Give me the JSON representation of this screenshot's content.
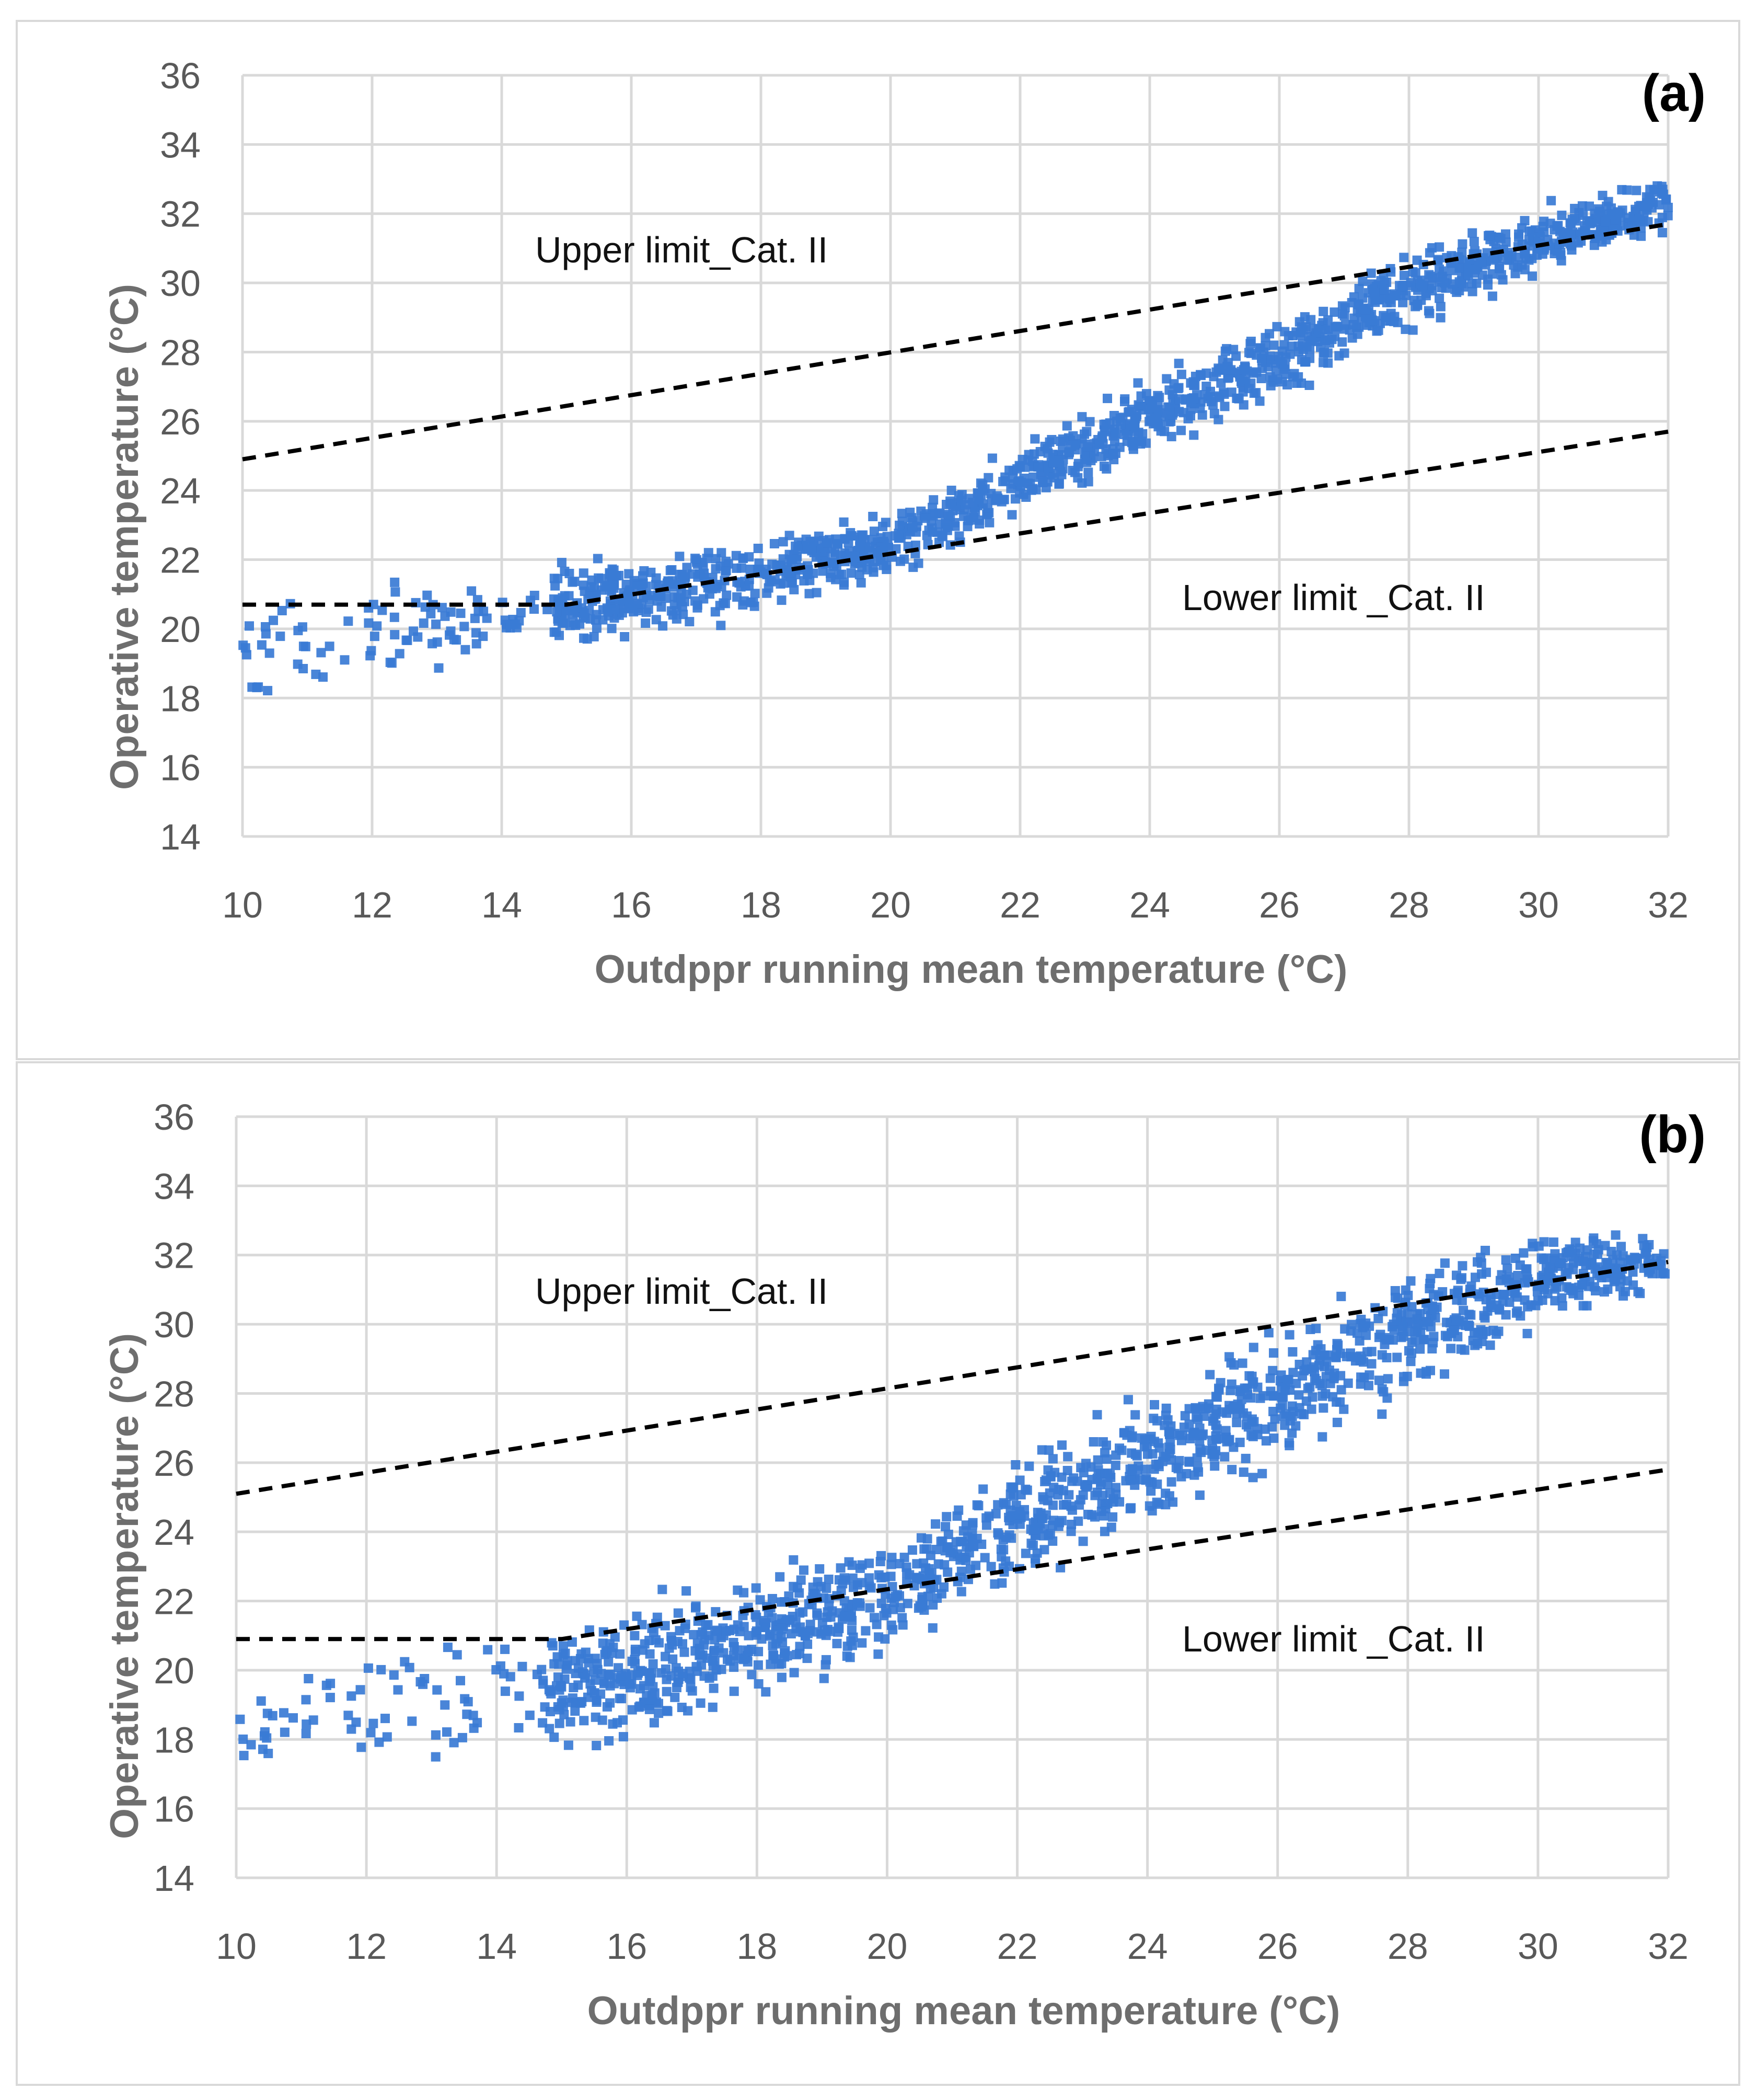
{
  "colors": {
    "marker": "#3a7bd5",
    "limit_line": "#000000",
    "grid": "#d9d9d9",
    "axis_text": "#595959"
  },
  "chart_data": [
    {
      "type": "scatter",
      "panel_label": "(a)",
      "xlabel": "Outdppr running mean temperature (°C)",
      "ylabel": "Operative temperature (°C)",
      "xlim": [
        10,
        32
      ],
      "ylim": [
        14,
        36
      ],
      "xticks": [
        "10",
        "12",
        "14",
        "16",
        "18",
        "20",
        "22",
        "24",
        "26",
        "28",
        "30",
        "32"
      ],
      "yticks": [
        "14",
        "16",
        "18",
        "20",
        "22",
        "24",
        "26",
        "28",
        "30",
        "32",
        "34",
        "36"
      ],
      "grid": true,
      "marker": "square",
      "upper_limit": {
        "label": "Upper limit_Cat. II",
        "points": [
          [
            10,
            24.9
          ],
          [
            32,
            31.7
          ]
        ]
      },
      "lower_limit": {
        "label": "Lower limit _Cat. II",
        "points": [
          [
            10,
            20.7
          ],
          [
            15,
            20.7
          ],
          [
            32,
            25.7
          ]
        ]
      },
      "series": [
        {
          "name": "Operative temperature",
          "trend": [
            [
              10,
              19.2
            ],
            [
              12,
              19.9
            ],
            [
              14,
              20.5
            ],
            [
              16,
              20.9
            ],
            [
              18,
              21.6
            ],
            [
              20,
              22.4
            ],
            [
              22,
              24.3
            ],
            [
              24,
              26.1
            ],
            [
              26,
              27.8
            ],
            [
              28,
              29.8
            ],
            [
              30,
              31.2
            ],
            [
              32,
              32.3
            ]
          ],
          "spread": [
            [
              10,
              1.2
            ],
            [
              14,
              0.9
            ],
            [
              16,
              0.8
            ],
            [
              20,
              0.7
            ],
            [
              28,
              0.8
            ],
            [
              32,
              0.6
            ]
          ],
          "n_points": 1500
        }
      ]
    },
    {
      "type": "scatter",
      "panel_label": "(b)",
      "xlabel": "Outdppr running mean temperature (°C)",
      "ylabel": "Operative temperature (°C)",
      "xlim": [
        10,
        32
      ],
      "ylim": [
        14,
        36
      ],
      "xticks": [
        "10",
        "12",
        "14",
        "16",
        "18",
        "20",
        "22",
        "24",
        "26",
        "28",
        "30",
        "32"
      ],
      "yticks": [
        "14",
        "16",
        "18",
        "20",
        "22",
        "24",
        "26",
        "28",
        "30",
        "32",
        "34",
        "36"
      ],
      "grid": true,
      "marker": "square",
      "upper_limit": {
        "label": "Upper limit_Cat. II",
        "points": [
          [
            10,
            25.1
          ],
          [
            32,
            31.8
          ]
        ]
      },
      "lower_limit": {
        "label": "Lower limit _Cat. II",
        "points": [
          [
            10,
            20.9
          ],
          [
            15,
            20.9
          ],
          [
            32,
            25.8
          ]
        ]
      },
      "series": [
        {
          "name": "Operative temperature",
          "trend": [
            [
              10,
              18.4
            ],
            [
              12,
              19.0
            ],
            [
              14,
              19.5
            ],
            [
              16,
              19.8
            ],
            [
              18,
              21.0
            ],
            [
              20,
              22.0
            ],
            [
              22,
              24.3
            ],
            [
              24,
              26.0
            ],
            [
              26,
              27.8
            ],
            [
              28,
              29.8
            ],
            [
              30,
              31.3
            ],
            [
              32,
              31.9
            ]
          ],
          "spread": [
            [
              10,
              1.0
            ],
            [
              14,
              1.3
            ],
            [
              16,
              1.4
            ],
            [
              20,
              1.2
            ],
            [
              24,
              1.5
            ],
            [
              28,
              1.3
            ],
            [
              32,
              0.6
            ]
          ],
          "n_points": 1500
        }
      ]
    }
  ]
}
